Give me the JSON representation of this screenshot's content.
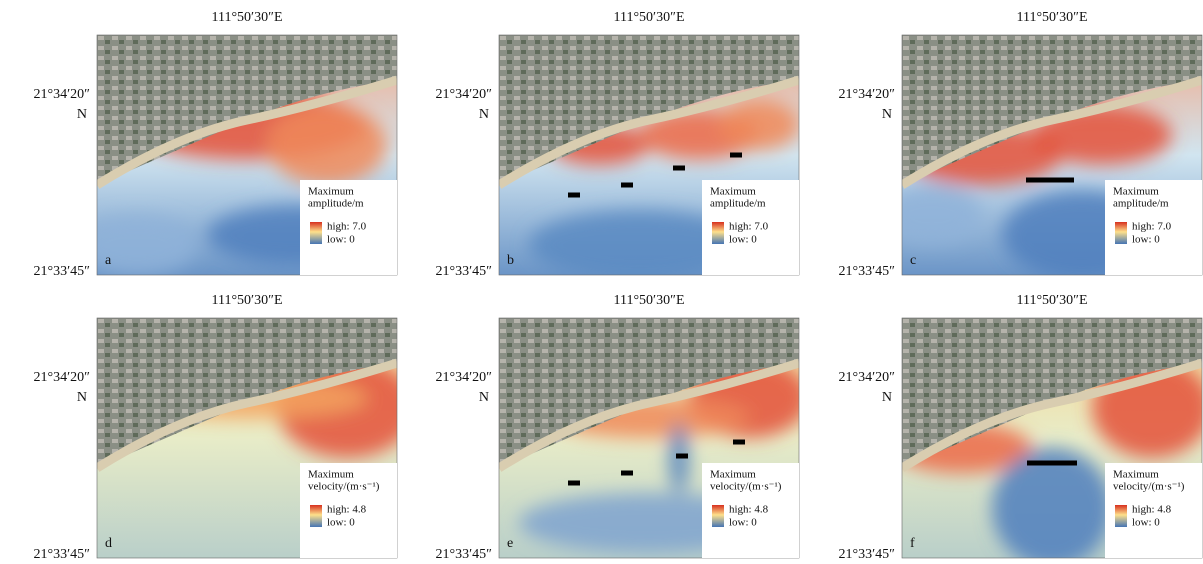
{
  "panels": [
    {
      "letter": "a",
      "top_label": "111°50′30″E",
      "lat_top": "21°34′20″",
      "lat_hemisphere": "N",
      "lat_bottom": "21°33′45″",
      "legend": {
        "title": [
          "Maximum",
          "amplitude/m"
        ],
        "high": "high: 7.0",
        "low": "low: 0"
      }
    },
    {
      "letter": "b",
      "top_label": "111°50′30″E",
      "lat_top": "21°34′20″",
      "lat_hemisphere": "N",
      "lat_bottom": "21°33′45″",
      "legend": {
        "title": [
          "Maximum",
          "amplitude/m"
        ],
        "high": "high: 7.0",
        "low": "low: 0"
      }
    },
    {
      "letter": "c",
      "top_label": "111°50′30″E",
      "lat_top": "21°34′20″",
      "lat_hemisphere": "N",
      "lat_bottom": "21°33′45″",
      "legend": {
        "title": [
          "Maximum",
          "amplitude/m"
        ],
        "high": "high: 7.0",
        "low": "low: 0"
      }
    },
    {
      "letter": "d",
      "top_label": "111°50′30″E",
      "lat_top": "21°34′20″",
      "lat_hemisphere": "N",
      "lat_bottom": "21°33′45″",
      "legend": {
        "title": [
          "Maximum",
          "velocity/(m·s⁻¹)"
        ],
        "high": "high: 4.8",
        "low": "low: 0"
      }
    },
    {
      "letter": "e",
      "top_label": "111°50′30″E",
      "lat_top": "21°34′20″",
      "lat_hemisphere": "N",
      "lat_bottom": "21°33′45″",
      "legend": {
        "title": [
          "Maximum",
          "velocity/(m·s⁻¹)"
        ],
        "high": "high: 4.8",
        "low": "low: 0"
      }
    },
    {
      "letter": "f",
      "top_label": "111°50′30″E",
      "lat_top": "21°34′20″",
      "lat_hemisphere": "N",
      "lat_bottom": "21°33′45″",
      "legend": {
        "title": [
          "Maximum",
          "velocity/(m·s⁻¹)"
        ],
        "high": "high: 4.8",
        "low": "low: 0"
      }
    }
  ]
}
